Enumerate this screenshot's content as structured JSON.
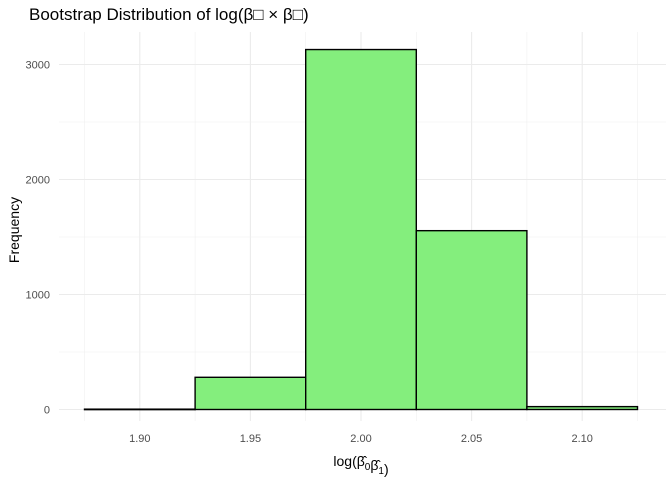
{
  "chart_data": {
    "type": "bar",
    "subtype": "histogram",
    "title": "Bootstrap Distribution of log(β□ × β□)",
    "xlabel": "log(β̂0β̂1)",
    "ylabel": "Frequency",
    "xlim": [
      1.875,
      2.125
    ],
    "ylim": [
      0,
      3150
    ],
    "bin_width": 0.05,
    "bins": [
      {
        "start": 1.875,
        "end": 1.925,
        "count": 3
      },
      {
        "start": 1.925,
        "end": 1.975,
        "count": 280
      },
      {
        "start": 1.975,
        "end": 2.025,
        "count": 3130
      },
      {
        "start": 2.025,
        "end": 2.075,
        "count": 1555
      },
      {
        "start": 2.075,
        "end": 2.125,
        "count": 25
      }
    ],
    "x_ticks": [
      1.9,
      1.95,
      2.0,
      2.05,
      2.1
    ],
    "x_tick_labels": [
      "1.90",
      "1.95",
      "2.00",
      "2.05",
      "2.10"
    ],
    "y_ticks": [
      0,
      1000,
      2000,
      3000
    ],
    "y_tick_labels": [
      "0",
      "1000",
      "2000",
      "3000"
    ],
    "fill_color": "#84EE7D",
    "edge_color": "#000000",
    "grid": true,
    "legend": "none"
  }
}
